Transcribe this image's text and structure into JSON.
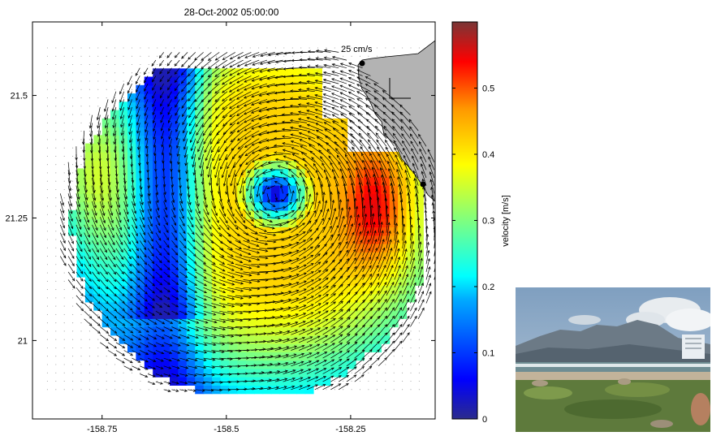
{
  "title": "28-Oct-2002 05:00:00",
  "scale_label": "25 cm/s",
  "x_axis": {
    "range": [
      -158.89,
      -158.08
    ],
    "ticks": [
      "-158.75",
      "-158.5",
      "-158.25"
    ],
    "tick_values": [
      -158.75,
      -158.5,
      -158.25
    ]
  },
  "y_axis": {
    "range": [
      20.84,
      21.65
    ],
    "ticks": [
      "21.5",
      "21.25",
      "21"
    ],
    "tick_values": [
      21.5,
      21.25,
      21.0
    ]
  },
  "colorbar": {
    "label": "velocity [m/s]",
    "range": [
      0,
      0.6
    ],
    "ticks": [
      "0.5",
      "0.4",
      "0.3",
      "0.2",
      "0.1",
      "0"
    ],
    "tick_values": [
      0.5,
      0.4,
      0.3,
      0.2,
      0.1,
      0
    ],
    "colormap": "jet"
  },
  "chart_data": {
    "type": "heatmap",
    "title": "28-Oct-2002 05:00:00",
    "variable": "velocity [m/s]",
    "xlim": [
      -158.89,
      -158.08
    ],
    "ylim": [
      20.84,
      21.65
    ],
    "clim": [
      0,
      0.6
    ],
    "eddy_center": {
      "lon": -158.4,
      "lat": 21.3
    },
    "coverage": {
      "center_lon": -158.45,
      "center_lat": 21.24,
      "radius_deg": 0.36
    },
    "features": [
      "anticlockwise eddy",
      "low-velocity band near -158.62",
      "high-velocity core near -158.2, 21.27"
    ],
    "velocity_peak": 0.55
  },
  "colors": {
    "land": "#b3b3b3",
    "frame": "#000000"
  }
}
